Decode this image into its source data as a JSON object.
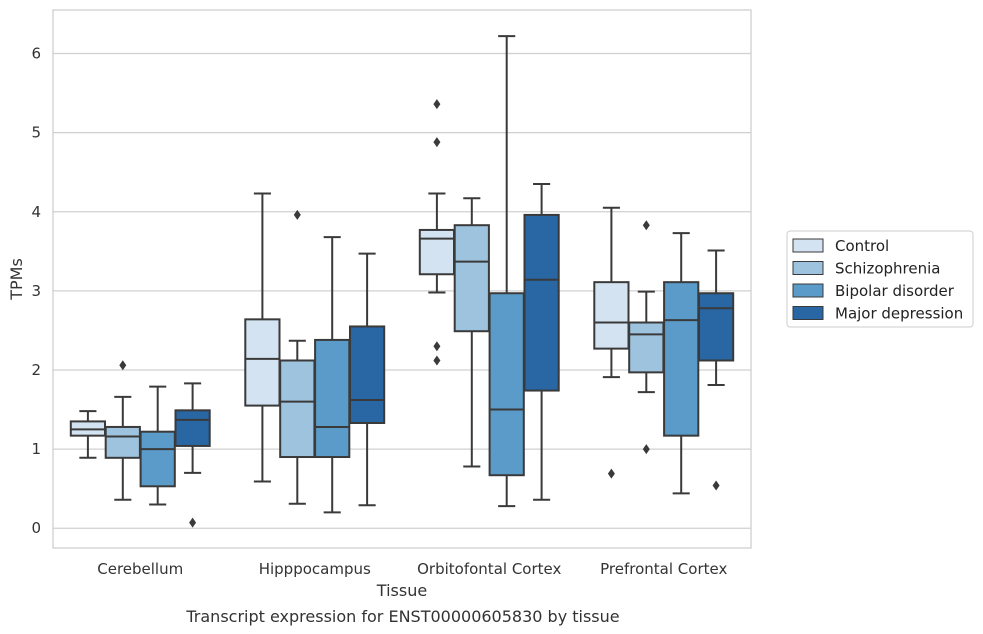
{
  "chart_data": {
    "type": "boxplot",
    "title": "Transcript expression for ENST00000605830 by tissue",
    "xlabel": "Tissue",
    "ylabel": "TPMs",
    "ylim": [
      -0.25,
      6.55
    ],
    "yticks": [
      0,
      1,
      2,
      3,
      4,
      5,
      6
    ],
    "grid": true,
    "legend_position": "right",
    "categories": [
      "Cerebellum",
      "Hipppocampus",
      "Orbitofontal Cortex",
      "Prefrontal Cortex"
    ],
    "series": [
      {
        "name": "Control",
        "color": "#d4e3f2",
        "boxes": [
          {
            "whislo": 0.89,
            "q1": 1.17,
            "med": 1.25,
            "q3": 1.35,
            "whishi": 1.48,
            "fliers": []
          },
          {
            "whislo": 0.59,
            "q1": 1.55,
            "med": 2.14,
            "q3": 2.64,
            "whishi": 4.23,
            "fliers": []
          },
          {
            "whislo": 2.98,
            "q1": 3.21,
            "med": 3.66,
            "q3": 3.77,
            "whishi": 4.23,
            "fliers": [
              5.36,
              4.88,
              2.3,
              2.12
            ]
          },
          {
            "whislo": 1.91,
            "q1": 2.27,
            "med": 2.6,
            "q3": 3.11,
            "whishi": 4.05,
            "fliers": [
              0.69
            ]
          }
        ]
      },
      {
        "name": "Schizophrenia",
        "color": "#9dc3de",
        "boxes": [
          {
            "whislo": 0.36,
            "q1": 0.89,
            "med": 1.16,
            "q3": 1.28,
            "whishi": 1.66,
            "fliers": [
              2.06
            ]
          },
          {
            "whislo": 0.31,
            "q1": 0.9,
            "med": 1.6,
            "q3": 2.12,
            "whishi": 2.37,
            "fliers": [
              3.96
            ]
          },
          {
            "whislo": 0.78,
            "q1": 2.49,
            "med": 3.37,
            "q3": 3.83,
            "whishi": 4.17,
            "fliers": []
          },
          {
            "whislo": 1.72,
            "q1": 1.97,
            "med": 2.45,
            "q3": 2.6,
            "whishi": 2.99,
            "fliers": [
              3.83,
              1.0
            ]
          }
        ]
      },
      {
        "name": "Bipolar disorder",
        "color": "#5a9bc9",
        "boxes": [
          {
            "whislo": 0.3,
            "q1": 0.53,
            "med": 1.0,
            "q3": 1.22,
            "whishi": 1.79,
            "fliers": []
          },
          {
            "whislo": 0.2,
            "q1": 0.9,
            "med": 1.28,
            "q3": 2.38,
            "whishi": 3.68,
            "fliers": []
          },
          {
            "whislo": 0.28,
            "q1": 0.67,
            "med": 1.5,
            "q3": 2.97,
            "whishi": 6.22,
            "fliers": []
          },
          {
            "whislo": 0.44,
            "q1": 1.17,
            "med": 2.63,
            "q3": 3.11,
            "whishi": 3.73,
            "fliers": []
          }
        ]
      },
      {
        "name": "Major depression",
        "color": "#2866a4",
        "boxes": [
          {
            "whislo": 0.7,
            "q1": 1.04,
            "med": 1.37,
            "q3": 1.49,
            "whishi": 1.83,
            "fliers": [
              0.07
            ]
          },
          {
            "whislo": 0.29,
            "q1": 1.33,
            "med": 1.62,
            "q3": 2.55,
            "whishi": 3.47,
            "fliers": []
          },
          {
            "whislo": 0.36,
            "q1": 1.74,
            "med": 3.14,
            "q3": 3.96,
            "whishi": 4.35,
            "fliers": []
          },
          {
            "whislo": 1.81,
            "q1": 2.12,
            "med": 2.78,
            "q3": 2.97,
            "whishi": 3.51,
            "fliers": [
              0.54
            ]
          }
        ]
      }
    ]
  }
}
